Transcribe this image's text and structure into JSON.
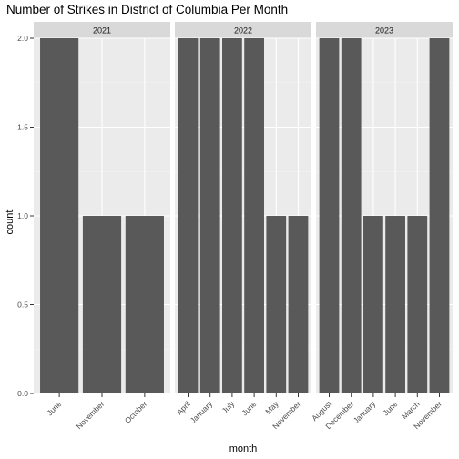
{
  "chart_data": {
    "type": "bar",
    "title": "Number of Strikes in District of Columbia Per Month",
    "xlabel": "month",
    "ylabel": "count",
    "ylim": [
      0,
      2.0
    ],
    "yticks": [
      "0.0",
      "0.5",
      "1.0",
      "1.5",
      "2.0"
    ],
    "grid": true,
    "colors": {
      "bar": "#595959",
      "panel": "#ebebeb",
      "strip": "#d9d9d9",
      "grid_major": "#ffffff"
    },
    "facets": [
      {
        "label": "2021",
        "categories": [
          "June",
          "November",
          "October"
        ],
        "values": [
          2,
          1,
          1
        ]
      },
      {
        "label": "2022",
        "categories": [
          "April",
          "January",
          "July",
          "June",
          "May",
          "November"
        ],
        "values": [
          2,
          2,
          2,
          2,
          1,
          1
        ]
      },
      {
        "label": "2023",
        "categories": [
          "August",
          "December",
          "January",
          "June",
          "March",
          "November"
        ],
        "values": [
          2,
          2,
          1,
          1,
          1,
          2
        ]
      }
    ]
  }
}
